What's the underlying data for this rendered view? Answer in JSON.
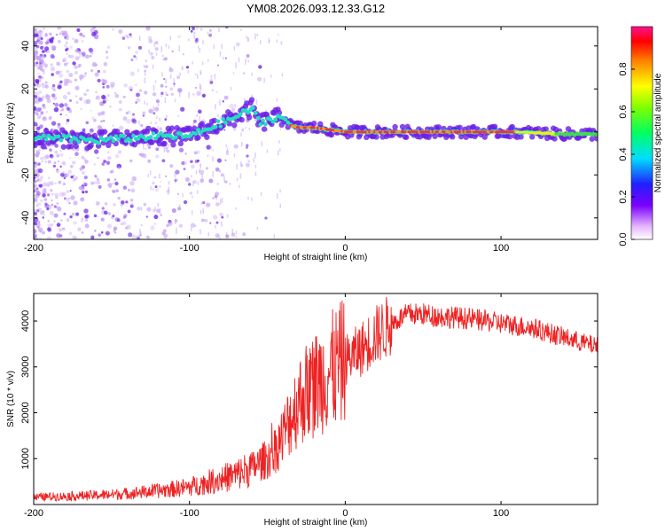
{
  "title": "YM08.2026.093.12.33.G12",
  "colors": {
    "snr_line": "#ee2222",
    "background": "#ffffff",
    "axis": "#000000",
    "spec_low": "#c9a7f5",
    "spec_mid": "#6a1fe6",
    "spec_high": "#1fe0c0",
    "spec_peak": "#ff3030"
  },
  "chart_data": [
    {
      "type": "heatmap",
      "title": "",
      "xlabel": "Height of straight line (km)",
      "ylabel": "Frequency (Hz)",
      "xlim": [
        -200,
        162
      ],
      "ylim": [
        -50,
        49
      ],
      "xticks": [
        -200,
        -100,
        0,
        100
      ],
      "xtick_labels": [
        "-200",
        "-100",
        "0",
        "100"
      ],
      "yticks": [
        -40,
        -20,
        0,
        20,
        40
      ],
      "ytick_labels": [
        "-40",
        "-20",
        "0",
        "20",
        "40"
      ],
      "ridge": [
        {
          "x": -200,
          "y": -3
        },
        {
          "x": -180,
          "y": -3
        },
        {
          "x": -160,
          "y": -4
        },
        {
          "x": -140,
          "y": -3
        },
        {
          "x": -120,
          "y": -2
        },
        {
          "x": -100,
          "y": -2
        },
        {
          "x": -90,
          "y": 1
        },
        {
          "x": -80,
          "y": 4
        },
        {
          "x": -70,
          "y": 7
        },
        {
          "x": -60,
          "y": 11
        },
        {
          "x": -55,
          "y": 4
        },
        {
          "x": -48,
          "y": 6
        },
        {
          "x": -40,
          "y": 7
        },
        {
          "x": -35,
          "y": 3
        },
        {
          "x": -30,
          "y": 2
        },
        {
          "x": -20,
          "y": 2
        },
        {
          "x": -10,
          "y": 1
        },
        {
          "x": 0,
          "y": 0
        },
        {
          "x": 20,
          "y": 0
        },
        {
          "x": 50,
          "y": 0
        },
        {
          "x": 80,
          "y": 0
        },
        {
          "x": 110,
          "y": 0
        },
        {
          "x": 140,
          "y": -1
        },
        {
          "x": 162,
          "y": -1
        }
      ],
      "colorbar": {
        "label": "Normalized spectral amplitude",
        "range": [
          0,
          1
        ],
        "ticks": [
          0.0,
          0.2,
          0.4,
          0.6,
          0.8
        ],
        "tick_labels": [
          "0.0",
          "0.2",
          "0.4",
          "0.6",
          "0.8"
        ]
      }
    },
    {
      "type": "line",
      "title": "",
      "xlabel": "Height of straight line (km)",
      "ylabel": "SNR (10 * v/v)",
      "xlim": [
        -200,
        162
      ],
      "ylim": [
        0,
        4600
      ],
      "xticks": [
        -200,
        -100,
        0,
        100
      ],
      "xtick_labels": [
        "-200",
        "-100",
        "0",
        "100"
      ],
      "yticks": [
        1000,
        2000,
        3000,
        4000
      ],
      "ytick_labels": [
        "1000",
        "2000",
        "3000",
        "4000"
      ],
      "series": [
        {
          "name": "SNR",
          "x": [
            -200,
            -180,
            -160,
            -140,
            -120,
            -100,
            -90,
            -80,
            -70,
            -60,
            -50,
            -45,
            -40,
            -35,
            -30,
            -25,
            -20,
            -15,
            -10,
            -5,
            0,
            5,
            10,
            20,
            30,
            40,
            50,
            60,
            70,
            80,
            90,
            100,
            110,
            120,
            130,
            140,
            150,
            162
          ],
          "values": [
            160,
            180,
            200,
            240,
            300,
            380,
            470,
            560,
            650,
            800,
            1000,
            1200,
            1500,
            1900,
            2250,
            2450,
            2600,
            2750,
            2900,
            3000,
            3150,
            3250,
            3380,
            3700,
            3950,
            4150,
            4150,
            4100,
            4080,
            4050,
            4000,
            3950,
            3900,
            3850,
            3750,
            3650,
            3550,
            3450
          ]
        }
      ]
    }
  ]
}
